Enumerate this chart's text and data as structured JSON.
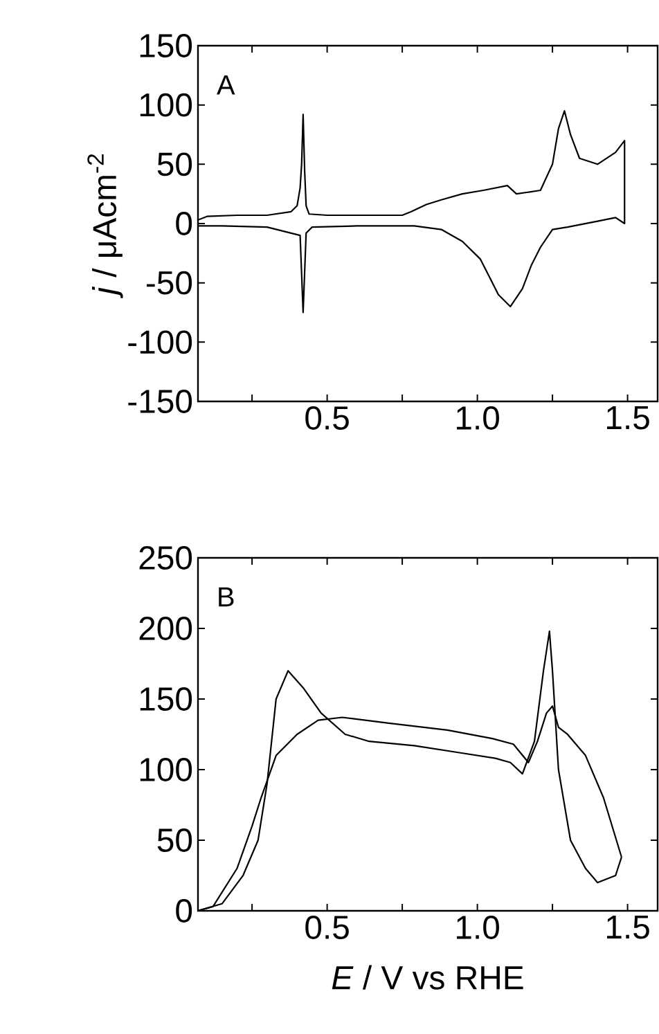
{
  "chart_data": [
    {
      "type": "line",
      "ylabel": "*j* / μAcm$^{-2}$",
      "annotations": [
        "A"
      ],
      "xlim": [
        0.07,
        1.6
      ],
      "ylim": [
        -150,
        150
      ],
      "xticks": [
        {
          "value": 0.25,
          "label": null
        },
        {
          "value": 0.5,
          "label": "0.5"
        },
        {
          "value": 0.75,
          "label": null
        },
        {
          "value": 1.0,
          "label": "1.0"
        },
        {
          "value": 1.25,
          "label": null
        },
        {
          "value": 1.5,
          "label": "1.5"
        }
      ],
      "yticks": [
        -150,
        -100,
        -50,
        0,
        50,
        100,
        150
      ],
      "tick_labels": "xy",
      "grid": false,
      "marker": "none",
      "line_style": "solid",
      "series": [
        {
          "color": "#000000",
          "x": [
            0.07,
            0.1,
            0.2,
            0.3,
            0.38,
            0.4,
            0.41,
            0.415,
            0.42,
            0.425,
            0.43,
            0.44,
            0.5,
            0.75,
            0.78,
            0.83,
            0.88,
            0.95,
            1.02,
            1.1,
            1.13,
            1.21,
            1.25,
            1.27,
            1.29,
            1.31,
            1.34,
            1.4,
            1.46,
            1.49,
            1.49,
            1.46,
            1.4,
            1.3,
            1.25,
            1.21,
            1.18,
            1.15,
            1.11,
            1.07,
            1.04,
            1.01,
            0.95,
            0.88,
            0.79,
            0.6,
            0.45,
            0.43,
            0.42,
            0.41,
            0.3,
            0.15,
            0.07
          ],
          "values": [
            3,
            6,
            7,
            7,
            10,
            15,
            30,
            50,
            92,
            45,
            15,
            8,
            7,
            7,
            10,
            16,
            20,
            25,
            28,
            32,
            25,
            28,
            50,
            80,
            95,
            75,
            55,
            50,
            60,
            70,
            0,
            5,
            2,
            -3,
            -5,
            -20,
            -35,
            -55,
            -70,
            -60,
            -45,
            -30,
            -15,
            -5,
            -2,
            -2,
            -3,
            -8,
            -75,
            -10,
            -3,
            -2,
            -2
          ]
        }
      ]
    },
    {
      "type": "line",
      "xlabel": "*E* / V vs RHE",
      "annotations": [
        "B"
      ],
      "xlim": [
        0.07,
        1.6
      ],
      "ylim": [
        0,
        250
      ],
      "xticks": [
        {
          "value": 0.25,
          "label": null
        },
        {
          "value": 0.5,
          "label": "0.5"
        },
        {
          "value": 0.75,
          "label": null
        },
        {
          "value": 1.0,
          "label": "1.0"
        },
        {
          "value": 1.25,
          "label": null
        },
        {
          "value": 1.5,
          "label": "1.5"
        }
      ],
      "yticks": [
        0,
        50,
        100,
        150,
        200,
        250
      ],
      "grid": false,
      "marker": "none",
      "line_style": "solid",
      "series": [
        {
          "color": "#000000",
          "x": [
            0.07,
            0.15,
            0.22,
            0.27,
            0.3,
            0.33,
            0.37,
            0.42,
            0.48,
            0.56,
            0.64,
            0.79,
            0.94,
            1.06,
            1.11,
            1.15,
            1.19,
            1.22,
            1.24,
            1.25,
            1.27,
            1.31,
            1.36,
            1.4,
            1.46,
            1.48
          ],
          "values": [
            0,
            5,
            25,
            50,
            90,
            150,
            170,
            158,
            140,
            125,
            120,
            117,
            112,
            108,
            105,
            97,
            120,
            170,
            198,
            170,
            100,
            50,
            30,
            20,
            25,
            38
          ]
        },
        {
          "color": "#000000",
          "x": [
            1.48,
            1.42,
            1.36,
            1.3,
            1.27,
            1.25,
            1.23,
            1.2,
            1.17,
            1.12,
            1.05,
            0.9,
            0.7,
            0.55,
            0.47,
            0.4,
            0.33,
            0.28,
            0.25,
            0.2,
            0.12,
            0.07
          ],
          "values": [
            38,
            80,
            110,
            125,
            130,
            145,
            140,
            120,
            105,
            118,
            122,
            128,
            133,
            137,
            135,
            125,
            110,
            80,
            60,
            30,
            3,
            0
          ]
        }
      ]
    }
  ]
}
